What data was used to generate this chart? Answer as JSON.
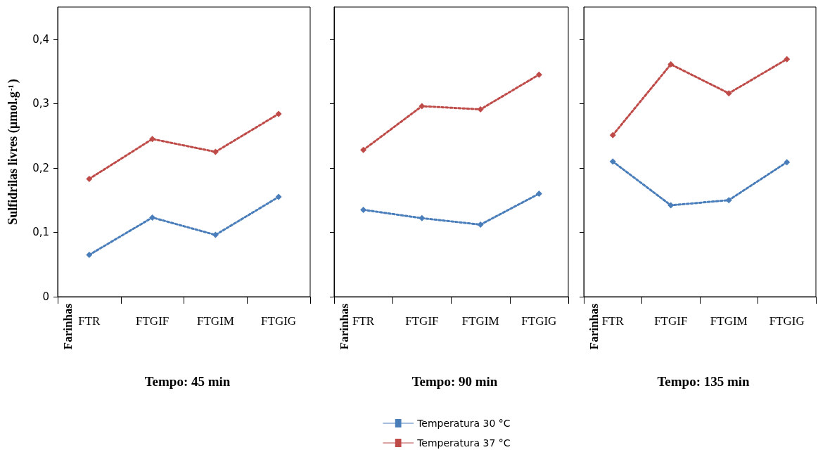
{
  "chart_data": [
    {
      "type": "line",
      "title": "Tempo: 45 min",
      "annotations": [
        "Farinhas"
      ],
      "ylabel": "Sulfidrilas livres (µmol.g$^{-1}$)",
      "categories": [
        "FTR",
        "FTGIF",
        "FTGIM",
        "FTGIG"
      ],
      "series": [
        {
          "color": "#4a7ebb",
          "values": [
            0.065,
            0.123,
            0.096,
            0.155
          ]
        },
        {
          "color": "#be4b48",
          "values": [
            0.183,
            0.245,
            0.225,
            0.284
          ]
        }
      ],
      "ylim": [
        0,
        0.45
      ],
      "yticks": [
        {
          "value": 0,
          "label": "0"
        },
        {
          "value": 0.1,
          "label": "0,1"
        },
        {
          "value": 0.2,
          "label": "0,2"
        },
        {
          "value": 0.3,
          "label": "0,3"
        },
        {
          "value": 0.4,
          "label": "0,4"
        }
      ],
      "grid": false,
      "legend": false,
      "marker": "diamond",
      "line_style": "dotted"
    },
    {
      "type": "line",
      "title": "Tempo: 90 min",
      "annotations": [
        "Farinhas"
      ],
      "categories": [
        "FTR",
        "FTGIF",
        "FTGIM",
        "FTGIG"
      ],
      "series": [
        {
          "name": "Temperatura 30 °C",
          "color": "#4a7ebb",
          "values": [
            0.135,
            0.122,
            0.112,
            0.16
          ]
        },
        {
          "name": "Temperatura 37 °C",
          "color": "#be4b48",
          "values": [
            0.228,
            0.296,
            0.291,
            0.345
          ]
        }
      ],
      "ylim": [
        0,
        0.45
      ],
      "yticks": [
        {
          "value": 0,
          "label": null
        },
        {
          "value": 0.1,
          "label": null
        },
        {
          "value": 0.2,
          "label": null
        },
        {
          "value": 0.3,
          "label": null
        },
        {
          "value": 0.4,
          "label": null
        }
      ],
      "tick_labels": "x",
      "grid": false,
      "legend": "bottom",
      "marker": "diamond",
      "line_style": "dotted"
    },
    {
      "type": "line",
      "title": "Tempo: 135 min",
      "annotations": [
        "Farinhas"
      ],
      "categories": [
        "FTR",
        "FTGIF",
        "FTGIM",
        "FTGIG"
      ],
      "series": [
        {
          "color": "#4a7ebb",
          "values": [
            0.21,
            0.142,
            0.15,
            0.209
          ]
        },
        {
          "color": "#be4b48",
          "values": [
            0.251,
            0.361,
            0.316,
            0.369
          ]
        }
      ],
      "ylim": [
        0,
        0.45
      ],
      "yticks": [
        {
          "value": 0,
          "label": null
        },
        {
          "value": 0.1,
          "label": null
        },
        {
          "value": 0.2,
          "label": null
        },
        {
          "value": 0.3,
          "label": null
        },
        {
          "value": 0.4,
          "label": null
        }
      ],
      "tick_labels": "x",
      "grid": false,
      "legend": false,
      "marker": "diamond",
      "line_style": "dotted"
    }
  ]
}
